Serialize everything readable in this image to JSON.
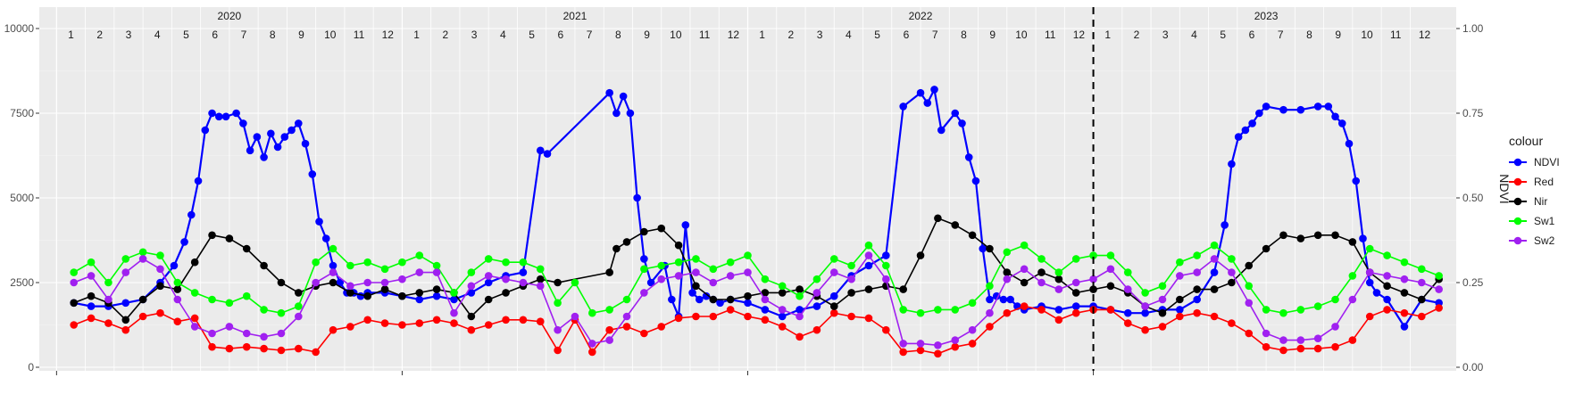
{
  "chart_data": {
    "type": "line",
    "title": "",
    "xlabel": "",
    "ylabel_left": "",
    "ylabel_right": "NDVI",
    "ylim_left": [
      0,
      10000
    ],
    "ylim_right": [
      0,
      1
    ],
    "left_ticks": [
      "0",
      "2500",
      "5000",
      "7500",
      "10000"
    ],
    "right_ticks": [
      "0.00",
      "0.25",
      "0.50",
      "0.75",
      "1.00"
    ],
    "grid": true,
    "years": [
      {
        "label": "2020",
        "start": 2020.0,
        "end": 2021.0
      },
      {
        "label": "2021",
        "start": 2021.0,
        "end": 2022.0
      },
      {
        "label": "2022",
        "start": 2022.0,
        "end": 2023.0
      },
      {
        "label": "2023",
        "start": 2023.0,
        "end": 2024.0
      }
    ],
    "months": [
      "1",
      "2",
      "3",
      "4",
      "5",
      "6",
      "7",
      "8",
      "9",
      "10",
      "11",
      "12"
    ],
    "xlim": [
      2019.95,
      2024.05
    ],
    "vline_x": 2023.0,
    "legend": {
      "title": "colour",
      "position": "right"
    },
    "series": [
      {
        "name": "NDVI",
        "color": "#0000ff",
        "axis": "right",
        "x": [
          2020.05,
          2020.1,
          2020.15,
          2020.2,
          2020.25,
          2020.3,
          2020.34,
          2020.37,
          2020.39,
          2020.41,
          2020.43,
          2020.45,
          2020.47,
          2020.49,
          2020.52,
          2020.54,
          2020.56,
          2020.58,
          2020.6,
          2020.62,
          2020.64,
          2020.66,
          2020.68,
          2020.7,
          2020.72,
          2020.74,
          2020.76,
          2020.78,
          2020.8,
          2020.82,
          2020.84,
          2020.86,
          2020.88,
          2020.9,
          2020.95,
          2021.0,
          2021.05,
          2021.1,
          2021.15,
          2021.2,
          2021.25,
          2021.3,
          2021.35,
          2021.4,
          2021.42,
          2021.6,
          2021.62,
          2021.64,
          2021.66,
          2021.68,
          2021.7,
          2021.72,
          2021.76,
          2021.78,
          2021.8,
          2021.82,
          2021.84,
          2021.86,
          2021.88,
          2021.9,
          2021.92,
          2021.95,
          2022.0,
          2022.05,
          2022.1,
          2022.15,
          2022.2,
          2022.25,
          2022.3,
          2022.35,
          2022.4,
          2022.45,
          2022.5,
          2022.52,
          2022.54,
          2022.56,
          2022.6,
          2022.62,
          2022.64,
          2022.66,
          2022.68,
          2022.7,
          2022.72,
          2022.74,
          2022.76,
          2022.78,
          2022.8,
          2022.85,
          2022.9,
          2022.95,
          2023.0,
          2023.05,
          2023.1,
          2023.15,
          2023.2,
          2023.25,
          2023.3,
          2023.35,
          2023.38,
          2023.4,
          2023.42,
          2023.44,
          2023.46,
          2023.48,
          2023.5,
          2023.55,
          2023.6,
          2023.65,
          2023.68,
          2023.7,
          2023.72,
          2023.74,
          2023.76,
          2023.78,
          2023.8,
          2023.82,
          2023.85,
          2023.9,
          2023.95,
          2024.0
        ],
        "values": [
          0.19,
          0.18,
          0.18,
          0.19,
          0.2,
          0.25,
          0.3,
          0.37,
          0.45,
          0.55,
          0.7,
          0.75,
          0.74,
          0.74,
          0.75,
          0.72,
          0.64,
          0.68,
          0.62,
          0.69,
          0.65,
          0.68,
          0.7,
          0.72,
          0.66,
          0.57,
          0.43,
          0.38,
          0.3,
          0.25,
          0.22,
          0.22,
          0.21,
          0.22,
          0.22,
          0.21,
          0.2,
          0.21,
          0.2,
          0.22,
          0.25,
          0.27,
          0.28,
          0.64,
          0.63,
          0.81,
          0.75,
          0.8,
          0.75,
          0.5,
          0.32,
          0.25,
          0.3,
          0.2,
          0.15,
          0.42,
          0.22,
          0.2,
          0.21,
          0.2,
          0.19,
          0.2,
          0.19,
          0.17,
          0.15,
          0.17,
          0.18,
          0.21,
          0.27,
          0.3,
          0.33,
          0.77,
          0.81,
          0.78,
          0.82,
          0.7,
          0.75,
          0.72,
          0.62,
          0.55,
          0.35,
          0.2,
          0.21,
          0.2,
          0.2,
          0.18,
          0.17,
          0.18,
          0.17,
          0.18,
          0.18,
          0.17,
          0.16,
          0.16,
          0.17,
          0.17,
          0.2,
          0.28,
          0.42,
          0.6,
          0.68,
          0.7,
          0.72,
          0.75,
          0.77,
          0.76,
          0.76,
          0.77,
          0.77,
          0.74,
          0.72,
          0.66,
          0.55,
          0.38,
          0.25,
          0.22,
          0.2,
          0.12,
          0.2,
          0.19
        ],
        "visible_note": ""
      },
      {
        "name": "Red",
        "color": "#ff0000",
        "axis": "left",
        "x": [
          2020.05,
          2020.1,
          2020.15,
          2020.2,
          2020.25,
          2020.3,
          2020.35,
          2020.4,
          2020.45,
          2020.5,
          2020.55,
          2020.6,
          2020.65,
          2020.7,
          2020.75,
          2020.8,
          2020.85,
          2020.9,
          2020.95,
          2021.0,
          2021.05,
          2021.1,
          2021.15,
          2021.2,
          2021.25,
          2021.3,
          2021.35,
          2021.4,
          2021.45,
          2021.5,
          2021.55,
          2021.6,
          2021.65,
          2021.7,
          2021.75,
          2021.8,
          2021.85,
          2021.9,
          2021.95,
          2022.0,
          2022.05,
          2022.1,
          2022.15,
          2022.2,
          2022.25,
          2022.3,
          2022.35,
          2022.4,
          2022.45,
          2022.5,
          2022.55,
          2022.6,
          2022.65,
          2022.7,
          2022.75,
          2022.8,
          2022.85,
          2022.9,
          2022.95,
          2023.0,
          2023.05,
          2023.1,
          2023.15,
          2023.2,
          2023.25,
          2023.3,
          2023.35,
          2023.4,
          2023.45,
          2023.5,
          2023.55,
          2023.6,
          2023.65,
          2023.7,
          2023.75,
          2023.8,
          2023.85,
          2023.9,
          2023.95,
          2024.0
        ],
        "values": [
          1250,
          1450,
          1300,
          1100,
          1500,
          1600,
          1350,
          1450,
          600,
          550,
          600,
          550,
          500,
          550,
          450,
          1100,
          1200,
          1400,
          1300,
          1250,
          1300,
          1400,
          1300,
          1100,
          1250,
          1400,
          1400,
          1350,
          500,
          1400,
          450,
          1100,
          1200,
          1000,
          1200,
          1450,
          1500,
          1500,
          1700,
          1500,
          1400,
          1200,
          900,
          1100,
          1600,
          1500,
          1450,
          1100,
          450,
          500,
          400,
          600,
          700,
          1200,
          1600,
          1800,
          1700,
          1400,
          1600,
          1700,
          1700,
          1300,
          1100,
          1200,
          1500,
          1600,
          1500,
          1300,
          1000,
          600,
          500,
          550,
          550,
          600,
          800,
          1500,
          1700,
          1600,
          1500,
          1750
        ],
        "visible_note": ""
      },
      {
        "name": "Nir",
        "color": "#000000",
        "axis": "left",
        "x": [
          2020.05,
          2020.1,
          2020.15,
          2020.2,
          2020.25,
          2020.3,
          2020.35,
          2020.4,
          2020.45,
          2020.5,
          2020.55,
          2020.6,
          2020.65,
          2020.7,
          2020.75,
          2020.8,
          2020.85,
          2020.9,
          2020.95,
          2021.0,
          2021.05,
          2021.1,
          2021.15,
          2021.2,
          2021.25,
          2021.3,
          2021.35,
          2021.4,
          2021.45,
          2021.6,
          2021.62,
          2021.65,
          2021.7,
          2021.75,
          2021.8,
          2021.85,
          2021.9,
          2021.95,
          2022.0,
          2022.05,
          2022.1,
          2022.15,
          2022.2,
          2022.25,
          2022.3,
          2022.35,
          2022.4,
          2022.45,
          2022.5,
          2022.55,
          2022.6,
          2022.65,
          2022.7,
          2022.75,
          2022.8,
          2022.85,
          2022.9,
          2022.95,
          2023.0,
          2023.05,
          2023.1,
          2023.15,
          2023.2,
          2023.25,
          2023.3,
          2023.35,
          2023.4,
          2023.45,
          2023.5,
          2023.55,
          2023.6,
          2023.65,
          2023.7,
          2023.75,
          2023.8,
          2023.85,
          2023.9,
          2023.95,
          2024.0
        ],
        "values": [
          1900,
          2100,
          1900,
          1400,
          2000,
          2400,
          2300,
          3100,
          3900,
          3800,
          3500,
          3000,
          2500,
          2200,
          2400,
          2500,
          2200,
          2100,
          2300,
          2100,
          2200,
          2300,
          2200,
          1500,
          2000,
          2200,
          2400,
          2600,
          2500,
          2800,
          3500,
          3700,
          4000,
          4100,
          3600,
          2400,
          2000,
          2000,
          2100,
          2200,
          2200,
          2300,
          2100,
          1800,
          2200,
          2300,
          2400,
          2300,
          3300,
          4400,
          4200,
          3900,
          3500,
          2800,
          2500,
          2800,
          2600,
          2200,
          2300,
          2400,
          2200,
          1800,
          1600,
          2000,
          2300,
          2300,
          2500,
          3000,
          3500,
          3900,
          3800,
          3900,
          3900,
          3700,
          2800,
          2400,
          2200,
          2000,
          2600
        ],
        "visible_note": ""
      },
      {
        "name": "Sw1",
        "color": "#00ff00",
        "axis": "left",
        "x": [
          2020.05,
          2020.1,
          2020.15,
          2020.2,
          2020.25,
          2020.3,
          2020.35,
          2020.4,
          2020.45,
          2020.5,
          2020.55,
          2020.6,
          2020.65,
          2020.7,
          2020.75,
          2020.8,
          2020.85,
          2020.9,
          2020.95,
          2021.0,
          2021.05,
          2021.1,
          2021.15,
          2021.2,
          2021.25,
          2021.3,
          2021.35,
          2021.4,
          2021.45,
          2021.5,
          2021.55,
          2021.6,
          2021.65,
          2021.7,
          2021.75,
          2021.8,
          2021.85,
          2021.9,
          2021.95,
          2022.0,
          2022.05,
          2022.1,
          2022.15,
          2022.2,
          2022.25,
          2022.3,
          2022.35,
          2022.4,
          2022.45,
          2022.5,
          2022.55,
          2022.6,
          2022.65,
          2022.7,
          2022.75,
          2022.8,
          2022.85,
          2022.9,
          2022.95,
          2023.0,
          2023.05,
          2023.1,
          2023.15,
          2023.2,
          2023.25,
          2023.3,
          2023.35,
          2023.4,
          2023.45,
          2023.5,
          2023.55,
          2023.6,
          2023.65,
          2023.7,
          2023.75,
          2023.8,
          2023.85,
          2023.9,
          2023.95,
          2024.0
        ],
        "values": [
          2800,
          3100,
          2500,
          3200,
          3400,
          3300,
          2500,
          2200,
          2000,
          1900,
          2100,
          1700,
          1600,
          1800,
          3100,
          3500,
          3000,
          3100,
          2900,
          3100,
          3300,
          3000,
          2200,
          2800,
          3200,
          3100,
          3100,
          2900,
          1900,
          2500,
          1600,
          1700,
          2000,
          2900,
          3000,
          3100,
          3200,
          2900,
          3100,
          3300,
          2600,
          2400,
          2100,
          2600,
          3200,
          3000,
          3600,
          3000,
          1700,
          1600,
          1700,
          1700,
          1900,
          2400,
          3400,
          3600,
          3200,
          2800,
          3200,
          3300,
          3300,
          2800,
          2200,
          2400,
          3100,
          3300,
          3600,
          3200,
          2400,
          1700,
          1600,
          1700,
          1800,
          2000,
          2700,
          3500,
          3300,
          3100,
          2900,
          2700
        ],
        "visible_note": ""
      },
      {
        "name": "Sw2",
        "color": "#a020f0",
        "axis": "left",
        "x": [
          2020.05,
          2020.1,
          2020.15,
          2020.2,
          2020.25,
          2020.3,
          2020.35,
          2020.4,
          2020.45,
          2020.5,
          2020.55,
          2020.6,
          2020.65,
          2020.7,
          2020.75,
          2020.8,
          2020.85,
          2020.9,
          2020.95,
          2021.0,
          2021.05,
          2021.1,
          2021.15,
          2021.2,
          2021.25,
          2021.3,
          2021.35,
          2021.4,
          2021.45,
          2021.5,
          2021.55,
          2021.6,
          2021.65,
          2021.7,
          2021.75,
          2021.8,
          2021.85,
          2021.9,
          2021.95,
          2022.0,
          2022.05,
          2022.1,
          2022.15,
          2022.2,
          2022.25,
          2022.3,
          2022.35,
          2022.4,
          2022.45,
          2022.5,
          2022.55,
          2022.6,
          2022.65,
          2022.7,
          2022.75,
          2022.8,
          2022.85,
          2022.9,
          2022.95,
          2023.0,
          2023.05,
          2023.1,
          2023.15,
          2023.2,
          2023.25,
          2023.3,
          2023.35,
          2023.4,
          2023.45,
          2023.5,
          2023.55,
          2023.6,
          2023.65,
          2023.7,
          2023.75,
          2023.8,
          2023.85,
          2023.9,
          2023.95,
          2024.0
        ],
        "values": [
          2500,
          2700,
          2000,
          2800,
          3200,
          2900,
          2000,
          1200,
          1000,
          1200,
          1000,
          900,
          1000,
          1500,
          2500,
          2800,
          2400,
          2500,
          2500,
          2600,
          2800,
          2800,
          1600,
          2400,
          2700,
          2600,
          2500,
          2400,
          1100,
          1500,
          700,
          800,
          1500,
          2200,
          2600,
          2700,
          2800,
          2500,
          2700,
          2800,
          2000,
          1700,
          1500,
          2200,
          2800,
          2600,
          3300,
          2600,
          700,
          700,
          650,
          800,
          1100,
          1600,
          2600,
          2900,
          2500,
          2300,
          2500,
          2600,
          2900,
          2300,
          1800,
          2000,
          2700,
          2800,
          3200,
          2800,
          1900,
          1000,
          800,
          800,
          850,
          1200,
          2000,
          2800,
          2700,
          2600,
          2500,
          2300
        ],
        "visible_note": ""
      }
    ]
  }
}
